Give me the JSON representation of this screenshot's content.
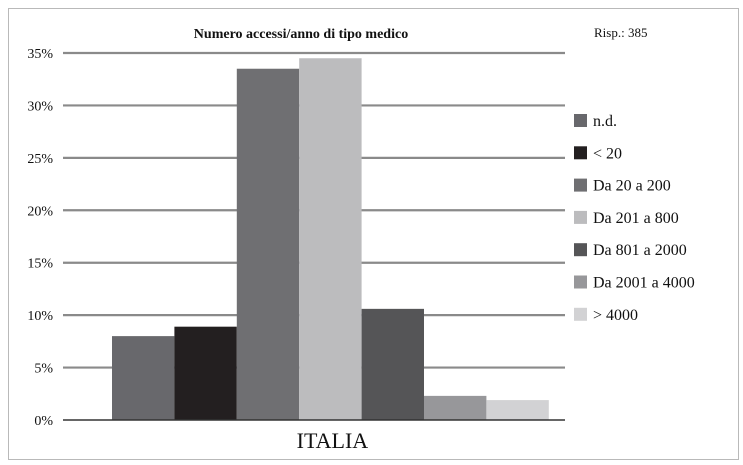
{
  "chart_data": {
    "type": "bar",
    "title": "Numero accessi/anno di tipo medico",
    "note": "Risp.: 385",
    "categories": [
      "ITALIA"
    ],
    "series": [
      {
        "name": "n.d.",
        "values": [
          8.0
        ],
        "color": "#68686c"
      },
      {
        "name": "< 20",
        "values": [
          8.9
        ],
        "color": "#231f20"
      },
      {
        "name": "Da 20 a 200",
        "values": [
          33.5
        ],
        "color": "#6f6f72"
      },
      {
        "name": "Da 201 a 800",
        "values": [
          34.5
        ],
        "color": "#bcbcbe"
      },
      {
        "name": "Da 801 a 2000",
        "values": [
          10.6
        ],
        "color": "#555557"
      },
      {
        "name": "Da 2001 a 4000",
        "values": [
          2.3
        ],
        "color": "#97979a"
      },
      {
        "name": "> 4000",
        "values": [
          1.9
        ],
        "color": "#d2d2d4"
      }
    ],
    "ylim": [
      0,
      35
    ],
    "yticks": [
      "0%",
      "5%",
      "10%",
      "15%",
      "20%",
      "25%",
      "30%",
      "35%"
    ],
    "grid": true,
    "legend": "right"
  }
}
